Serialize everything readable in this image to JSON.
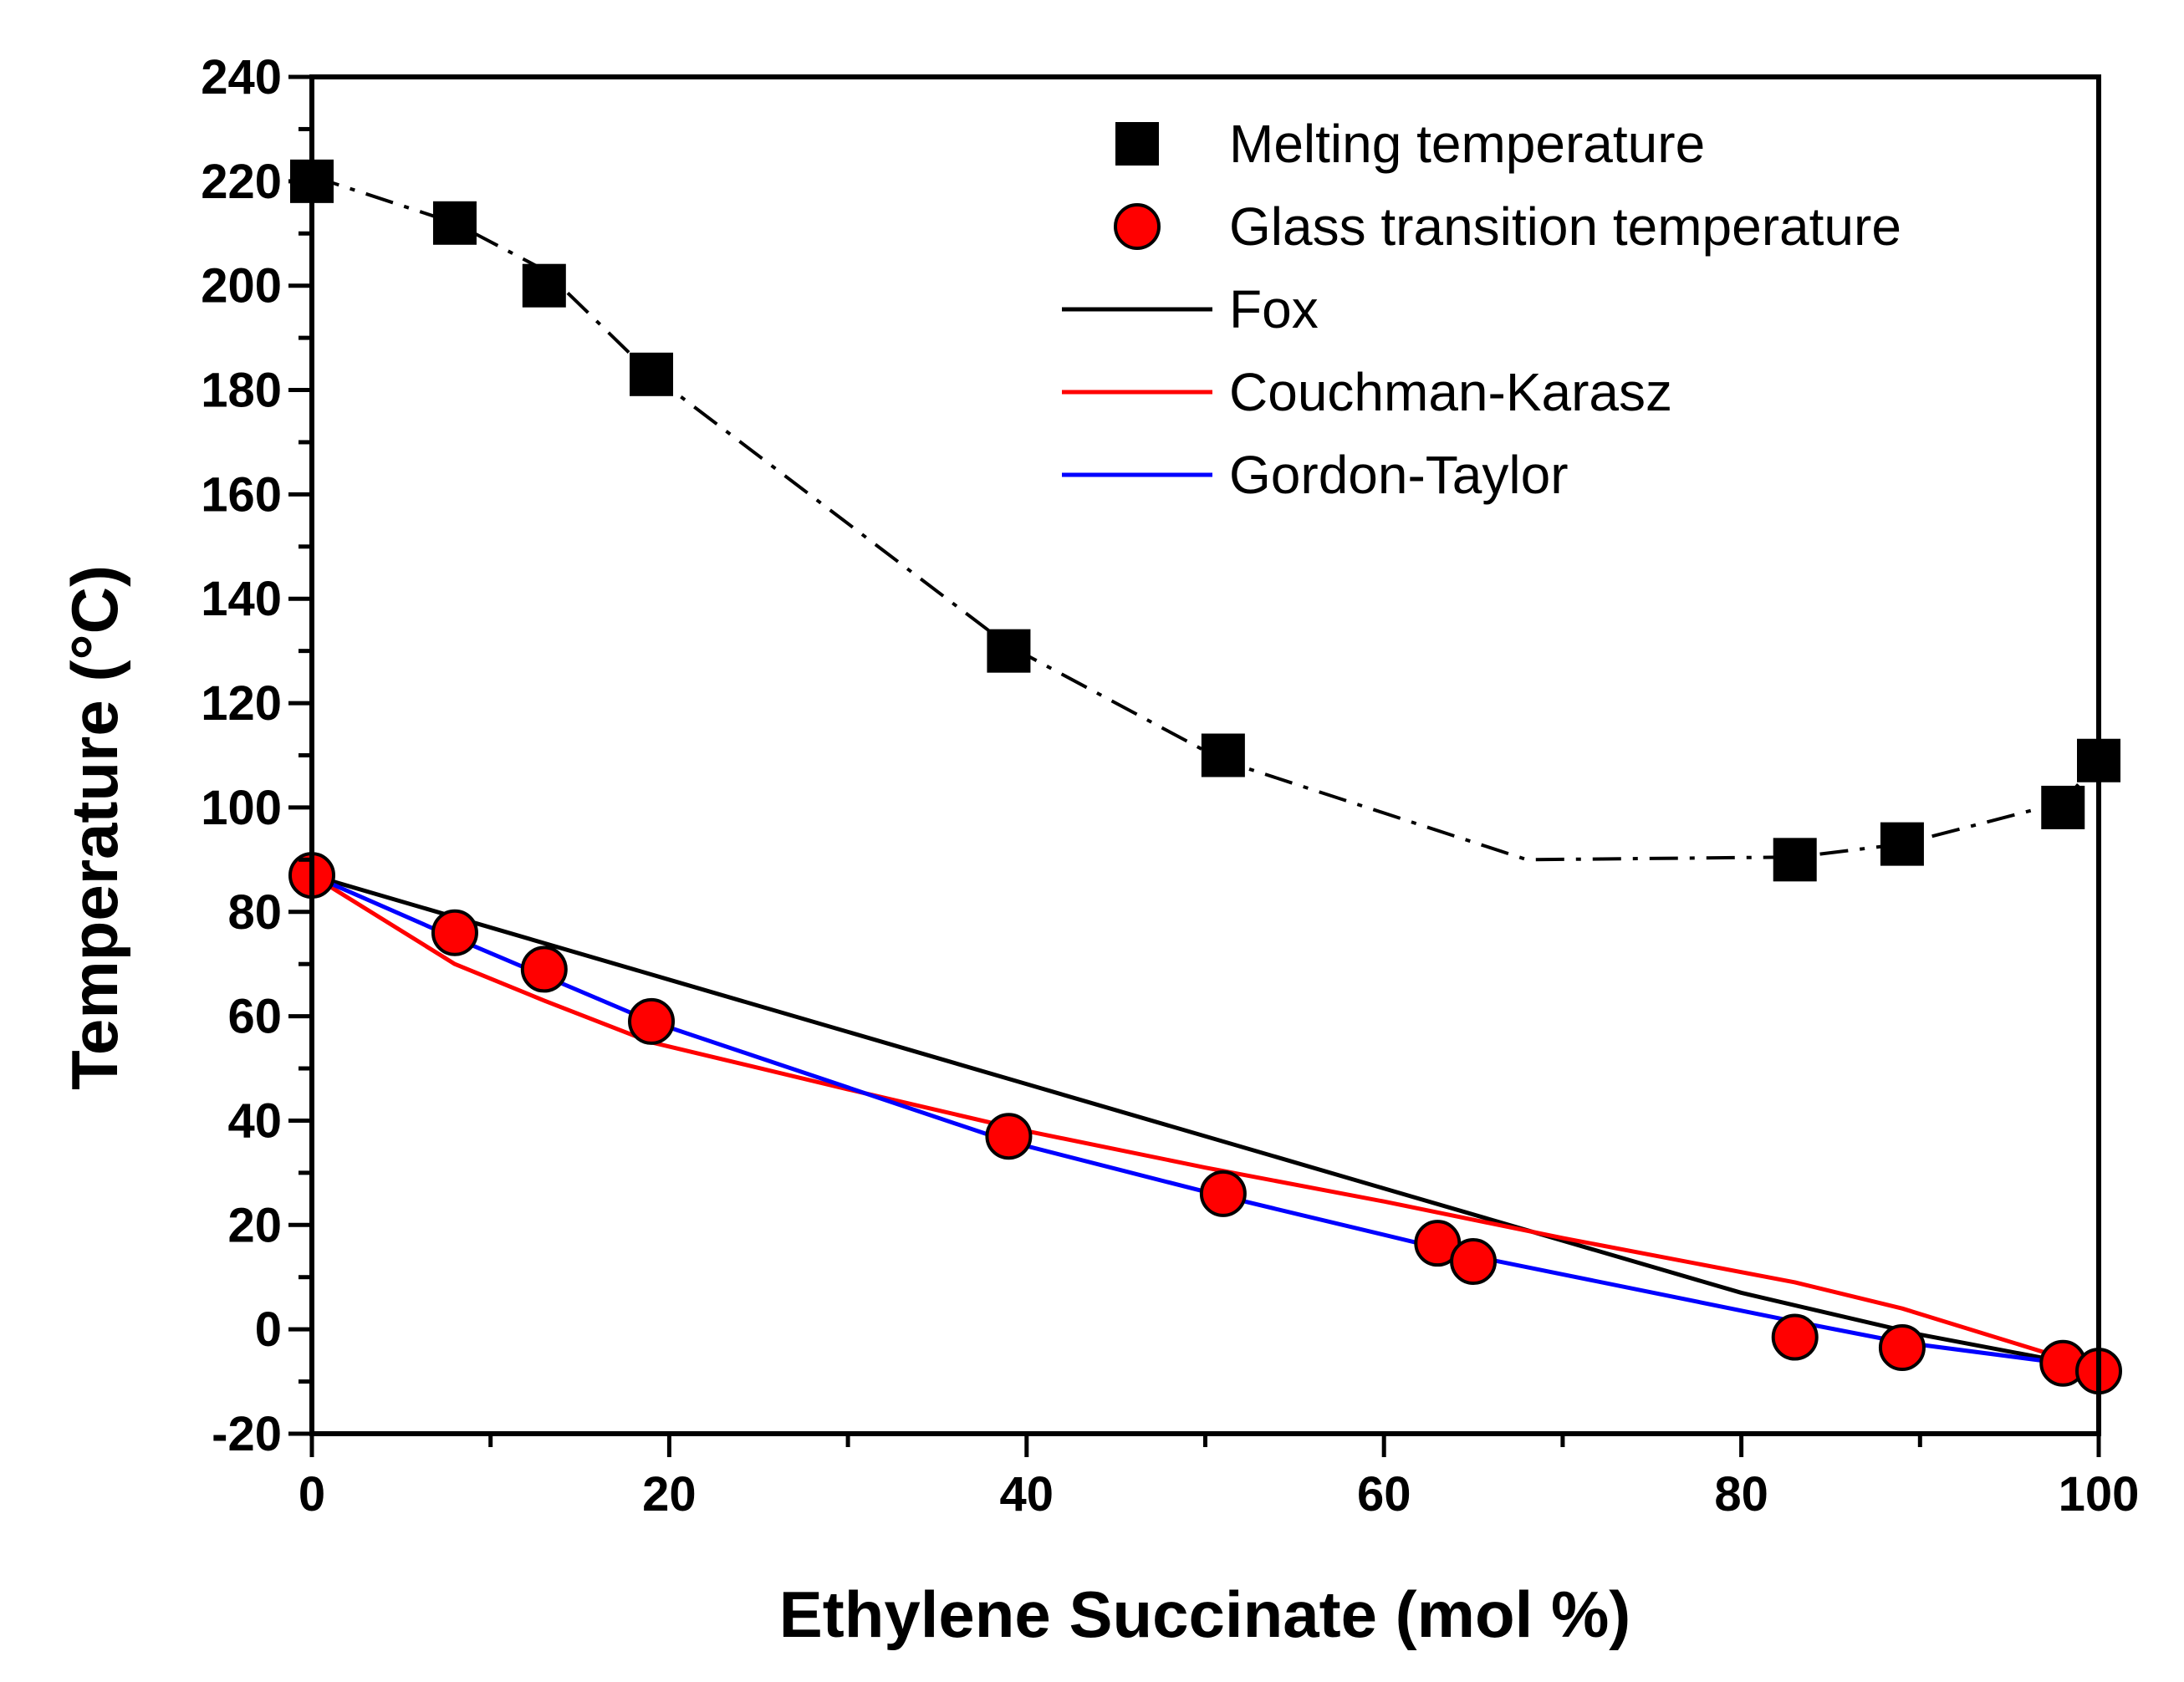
{
  "chart_data": {
    "type": "scatter",
    "xlabel": "Ethylene Succinate (mol %)",
    "ylabel": "Temperature (°C)",
    "xlim": [
      0,
      100
    ],
    "ylim": [
      -20,
      240
    ],
    "x_ticks": [
      0,
      20,
      40,
      60,
      80,
      100
    ],
    "x_tick_labels": [
      "0",
      "20",
      "40",
      "60",
      "80",
      "100"
    ],
    "y_ticks": [
      -20,
      0,
      20,
      40,
      60,
      80,
      100,
      120,
      140,
      160,
      180,
      200,
      220,
      240
    ],
    "y_tick_labels": [
      "-20",
      "0",
      "20",
      "40",
      "60",
      "80",
      "100",
      "120",
      "140",
      "160",
      "180",
      "200",
      "220",
      "240"
    ],
    "legend_position": "top-right",
    "series": [
      {
        "name": "Melting temperature",
        "kind": "scatter",
        "marker": "square",
        "color": "#000000",
        "x": [
          0,
          8,
          13,
          19,
          39,
          51,
          83,
          89,
          98,
          100
        ],
        "y": [
          220,
          212,
          200,
          183,
          130,
          110,
          90,
          93,
          100,
          109
        ]
      },
      {
        "name": "Glass transition temperature",
        "kind": "scatter",
        "marker": "circle",
        "color": "#ff0000",
        "x": [
          0,
          8,
          13,
          19,
          39,
          51,
          63,
          65,
          83,
          89,
          98,
          100
        ],
        "y": [
          87,
          76,
          69,
          59,
          37,
          26,
          16.5,
          13,
          -1.5,
          -3.5,
          -6.5,
          -8
        ]
      },
      {
        "name": "Fox",
        "kind": "line",
        "color": "#000000",
        "x": [
          0,
          20,
          40,
          60,
          80,
          90,
          100
        ],
        "y": [
          87,
          67,
          47,
          27,
          7,
          -1,
          -7.5
        ]
      },
      {
        "name": "Couchman-Karasz",
        "kind": "line",
        "color": "#ff0000",
        "x": [
          0,
          8,
          13,
          19,
          30,
          40,
          50,
          60,
          70,
          83,
          89,
          98,
          100
        ],
        "y": [
          87,
          70,
          63,
          55,
          46,
          38,
          31,
          24.5,
          17.5,
          9,
          4,
          -5.5,
          -7.5
        ]
      },
      {
        "name": "Gordon-Taylor",
        "kind": "line",
        "color": "#0000ff",
        "x": [
          0,
          8,
          19,
          39,
          51,
          65,
          83,
          89,
          98,
          100
        ],
        "y": [
          87,
          75,
          59,
          36,
          25.5,
          14,
          1.5,
          -2.5,
          -6.5,
          -8
        ]
      },
      {
        "name": "Melting trend",
        "kind": "line",
        "style": "dash-dot",
        "in_legend": false,
        "color": "#000000",
        "x": [
          0,
          8,
          13,
          19,
          39,
          51,
          68,
          83,
          89,
          98,
          100
        ],
        "y": [
          221,
          212,
          203,
          183,
          131,
          109,
          90,
          90.5,
          93,
          101,
          109
        ]
      }
    ]
  }
}
